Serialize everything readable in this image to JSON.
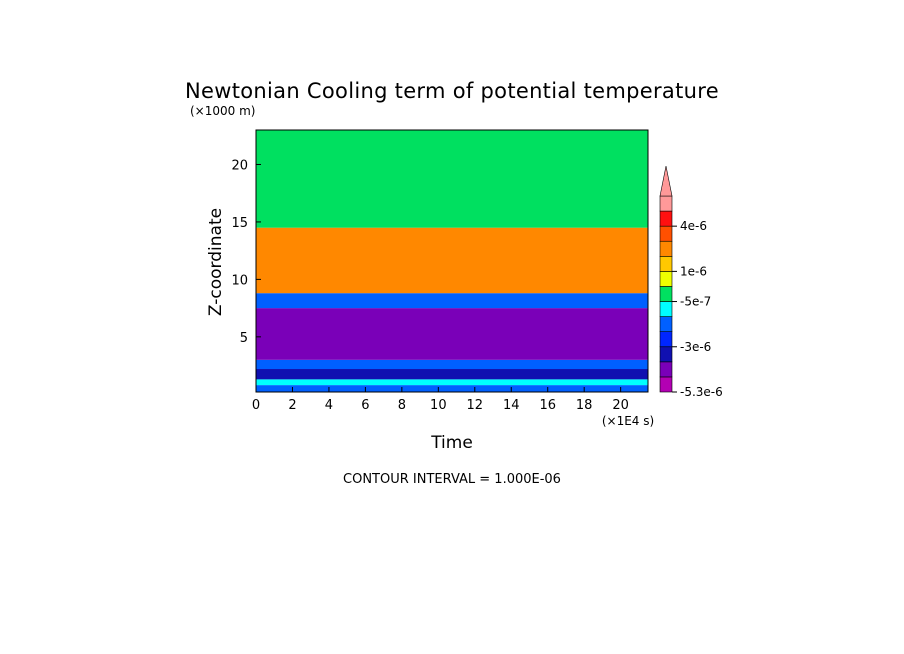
{
  "chart_data": {
    "type": "heatmap",
    "title": "Newtonian Cooling term of potential temperature",
    "xlabel": "Time",
    "ylabel": "Z-coordinate",
    "x_unit": "(×1E4 s)",
    "y_unit": "(×1000 m)",
    "xlim": [
      0,
      21.5
    ],
    "ylim": [
      0.2,
      23.0
    ],
    "x_ticks": [
      "0",
      "2",
      "4",
      "6",
      "8",
      "10",
      "12",
      "14",
      "16",
      "18",
      "20"
    ],
    "y_ticks": [
      "5",
      "10",
      "15",
      "20"
    ],
    "x_tick_values": [
      0,
      2,
      4,
      6,
      8,
      10,
      12,
      14,
      16,
      18,
      20
    ],
    "y_tick_values": [
      5,
      10,
      15,
      20
    ],
    "footer": "CONTOUR INTERVAL = 1.000E-06",
    "colorbar": {
      "labels": [
        "4e-6",
        "1e-6",
        "-5e-7",
        "-3e-6",
        "-5.3e-6"
      ],
      "label_values": [
        4e-06,
        1e-06,
        -5e-07,
        -3e-06,
        -5.3e-06
      ],
      "levels": [
        -5.3e-06,
        -5e-06,
        -4e-06,
        -3e-06,
        -2e-06,
        -1e-06,
        -5e-07,
        0,
        1e-06,
        2e-06,
        3e-06,
        4e-06,
        5e-06
      ],
      "colors": [
        "#b300b3",
        "#7a00b8",
        "#1010b0",
        "#0026ff",
        "#0060ff",
        "#00ffff",
        "#00e060",
        "#eeff00",
        "#ffc800",
        "#ff8800",
        "#ff5000",
        "#ff1010",
        "#ff9999"
      ],
      "extend": "max"
    },
    "regions": [
      {
        "band": "0.2-0.8",
        "value": -2e-06
      },
      {
        "band": "0.8-1.3",
        "value": -1e-06
      },
      {
        "band": "1.3-2.2",
        "value": -3.5e-06
      },
      {
        "band": "2.2-3.0",
        "value": -2e-06
      },
      {
        "band": "3.0-7.5",
        "value": -4.5e-06
      },
      {
        "band": "7.5-8.8",
        "value": -1.5e-06
      },
      {
        "band": "8.8-14.5",
        "value": 2e-06
      },
      {
        "band": "14.5-23.0",
        "value": -2.5e-07
      }
    ]
  }
}
